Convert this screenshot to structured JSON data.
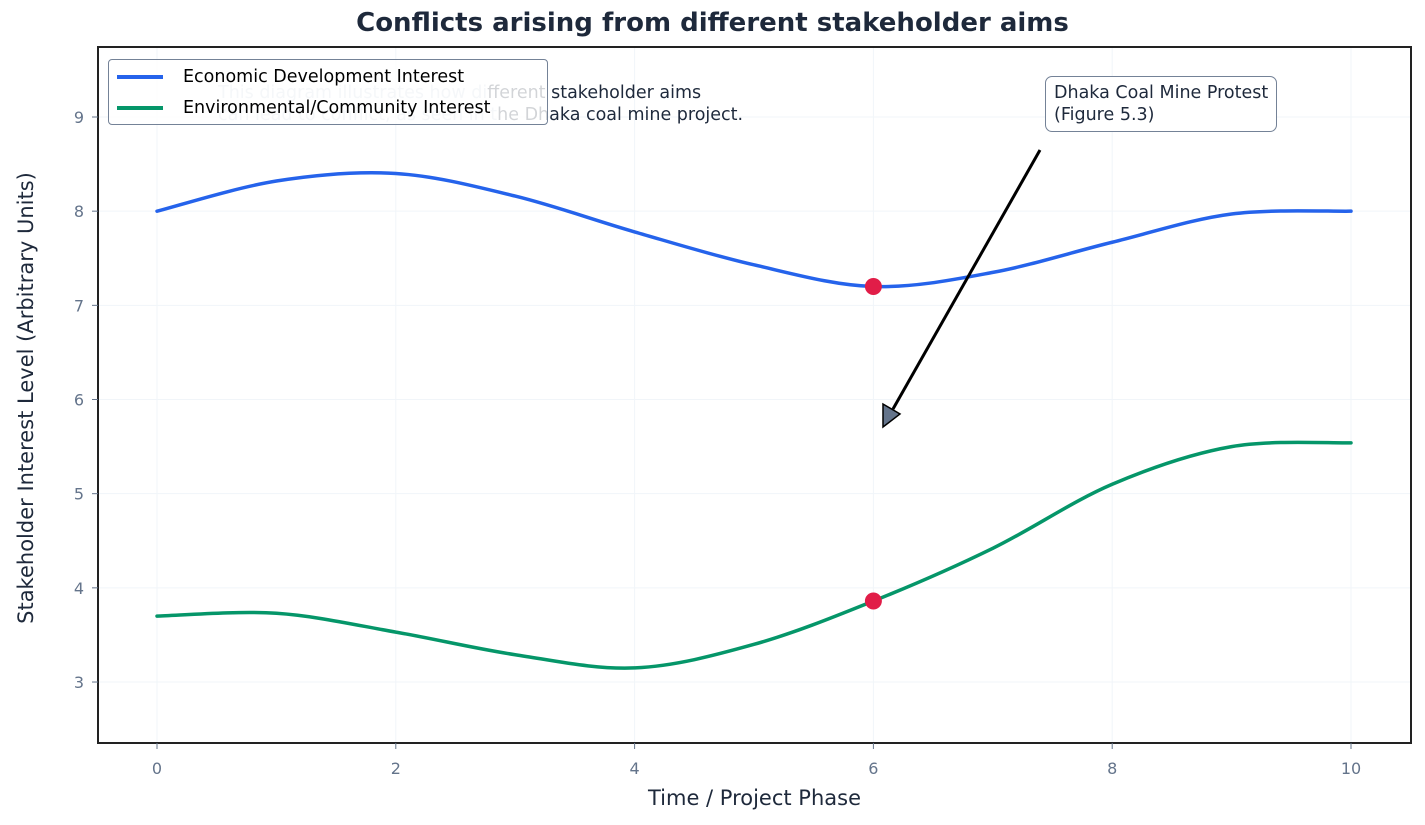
{
  "chart_data": {
    "type": "line",
    "title": "Conflicts arising from different stakeholder aims",
    "xlabel": "Time / Project Phase",
    "ylabel": "Stakeholder Interest Level (Arbitrary Units)",
    "xlim": [
      -0.5,
      10.5
    ],
    "ylim": [
      2.35,
      9.75
    ],
    "xticks": [
      "0",
      "2",
      "4",
      "6",
      "8",
      "10"
    ],
    "yticks": [
      "3",
      "4",
      "5",
      "6",
      "7",
      "8",
      "9"
    ],
    "grid": true,
    "legend_position": "upper left",
    "x": [
      0,
      1,
      2,
      3,
      4,
      5,
      6,
      7,
      8,
      9,
      10
    ],
    "series": [
      {
        "name": "Economic Development Interest",
        "color": "#2563eb",
        "values": [
          8.0,
          8.32,
          8.4,
          8.16,
          7.78,
          7.43,
          7.2,
          7.35,
          7.67,
          7.97,
          8.0
        ]
      },
      {
        "name": "Environmental/Community Interest",
        "color": "#059669",
        "values": [
          3.7,
          3.73,
          3.53,
          3.29,
          3.15,
          3.4,
          3.86,
          4.42,
          5.1,
          5.5,
          5.54
        ]
      }
    ],
    "markers": [
      {
        "x": 6,
        "y": 7.2,
        "color": "#e11d48"
      },
      {
        "x": 6,
        "y": 3.86,
        "color": "#e11d48"
      }
    ],
    "annotations": [
      {
        "text": "Dhaka Coal Mine Protest\n(Figure 5.3)",
        "xytext": [
          7.4,
          9.1
        ],
        "xy": [
          6.05,
          5.7
        ]
      },
      {
        "text": "This diagram illustrates how different stakeholder aims\ncan lead to conflict, as seen in the Dhaka coal mine project.",
        "position": [
          0.5,
          9.1
        ]
      }
    ]
  },
  "title": "Conflicts arising from different stakeholder aims",
  "legend": {
    "items": [
      {
        "label": "Economic Development Interest",
        "color": "#2563eb"
      },
      {
        "label": "Environmental/Community Interest",
        "color": "#059669"
      }
    ]
  },
  "watermark": {
    "line1_faded": "This diagram illustrates how di",
    "line1_rest": "fferent stakeholder aims",
    "line2_faded": "can lead to conflict, as seen in t",
    "line2_rest": "he Dhaka coal mine project."
  },
  "callout": {
    "line1": "Dhaka Coal Mine Protest",
    "line2": "(Figure 5.3)"
  },
  "axes": {
    "xlabel": "Time / Project Phase",
    "ylabel": "Stakeholder Interest Level (Arbitrary Units)"
  }
}
